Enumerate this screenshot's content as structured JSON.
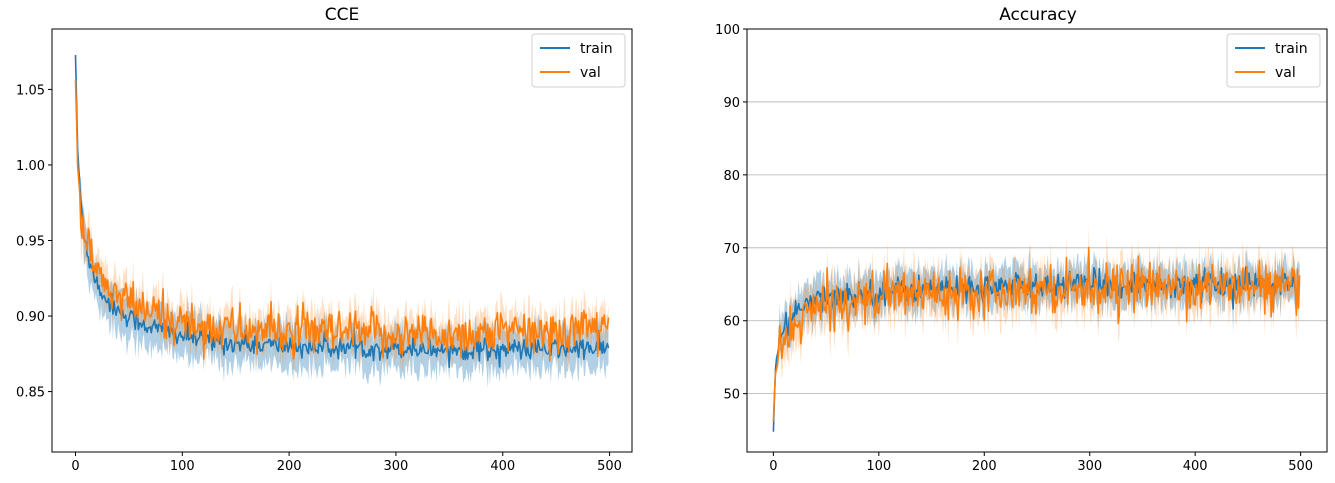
{
  "chart_data": [
    {
      "type": "line",
      "title": "CCE",
      "xlabel": "",
      "ylabel": "",
      "xlim": [
        -22,
        521
      ],
      "ylim": [
        0.81,
        1.09
      ],
      "xticks": [
        "0",
        "100",
        "200",
        "300",
        "400",
        "500"
      ],
      "yticks": [
        "0.85",
        "0.90",
        "0.95",
        "1.00",
        "1.05"
      ],
      "grid": false,
      "legend": "top-right",
      "series": [
        {
          "name": "train",
          "color": "#1f77b4",
          "x": [
            0,
            2,
            5,
            8,
            12,
            16,
            20,
            25,
            30,
            40,
            50,
            60,
            70,
            80,
            100,
            120,
            150,
            200,
            250,
            300,
            350,
            400,
            450,
            499
          ],
          "values": [
            1.073,
            1.01,
            0.975,
            0.955,
            0.94,
            0.93,
            0.922,
            0.915,
            0.91,
            0.904,
            0.899,
            0.896,
            0.893,
            0.891,
            0.887,
            0.884,
            0.882,
            0.88,
            0.879,
            0.879,
            0.878,
            0.878,
            0.878,
            0.879
          ]
        },
        {
          "name": "val",
          "color": "#ff7f0e",
          "x": [
            0,
            2,
            5,
            8,
            12,
            16,
            20,
            25,
            30,
            40,
            50,
            60,
            70,
            80,
            100,
            120,
            150,
            200,
            250,
            300,
            350,
            400,
            450,
            499
          ],
          "values": [
            1.056,
            1.0,
            0.97,
            0.952,
            0.946,
            0.937,
            0.928,
            0.922,
            0.918,
            0.913,
            0.908,
            0.905,
            0.902,
            0.9,
            0.896,
            0.893,
            0.891,
            0.889,
            0.888,
            0.888,
            0.888,
            0.889,
            0.889,
            0.896
          ]
        }
      ]
    },
    {
      "type": "line",
      "title": "Accuracy",
      "xlabel": "",
      "ylabel": "",
      "xlim": [
        -25,
        525
      ],
      "ylim": [
        42,
        100
      ],
      "xticks": [
        "0",
        "100",
        "200",
        "300",
        "400",
        "500"
      ],
      "yticks": [
        "50",
        "60",
        "70",
        "80",
        "90",
        "100"
      ],
      "grid": true,
      "legend": "top-right",
      "series": [
        {
          "name": "train",
          "color": "#1f77b4",
          "x": [
            0,
            2,
            5,
            8,
            12,
            16,
            20,
            25,
            30,
            40,
            50,
            60,
            70,
            80,
            100,
            120,
            150,
            200,
            250,
            300,
            350,
            400,
            450,
            499
          ],
          "values": [
            44.8,
            53.5,
            56.5,
            58.0,
            59.3,
            60.2,
            60.9,
            61.5,
            62.0,
            62.6,
            63.0,
            63.3,
            63.5,
            63.7,
            64.0,
            64.2,
            64.4,
            64.6,
            64.8,
            64.9,
            65.0,
            65.0,
            65.0,
            64.9
          ]
        },
        {
          "name": "val",
          "color": "#ff7f0e",
          "x": [
            0,
            2,
            5,
            8,
            12,
            16,
            20,
            25,
            30,
            40,
            50,
            60,
            70,
            80,
            100,
            120,
            150,
            200,
            250,
            300,
            350,
            400,
            450,
            499
          ],
          "values": [
            46.5,
            52.5,
            55.0,
            56.5,
            57.8,
            58.8,
            59.5,
            60.2,
            60.8,
            61.5,
            62.0,
            62.4,
            62.7,
            63.0,
            63.4,
            63.7,
            64.0,
            64.3,
            64.5,
            64.6,
            64.7,
            64.7,
            64.7,
            64.5
          ]
        }
      ]
    }
  ]
}
